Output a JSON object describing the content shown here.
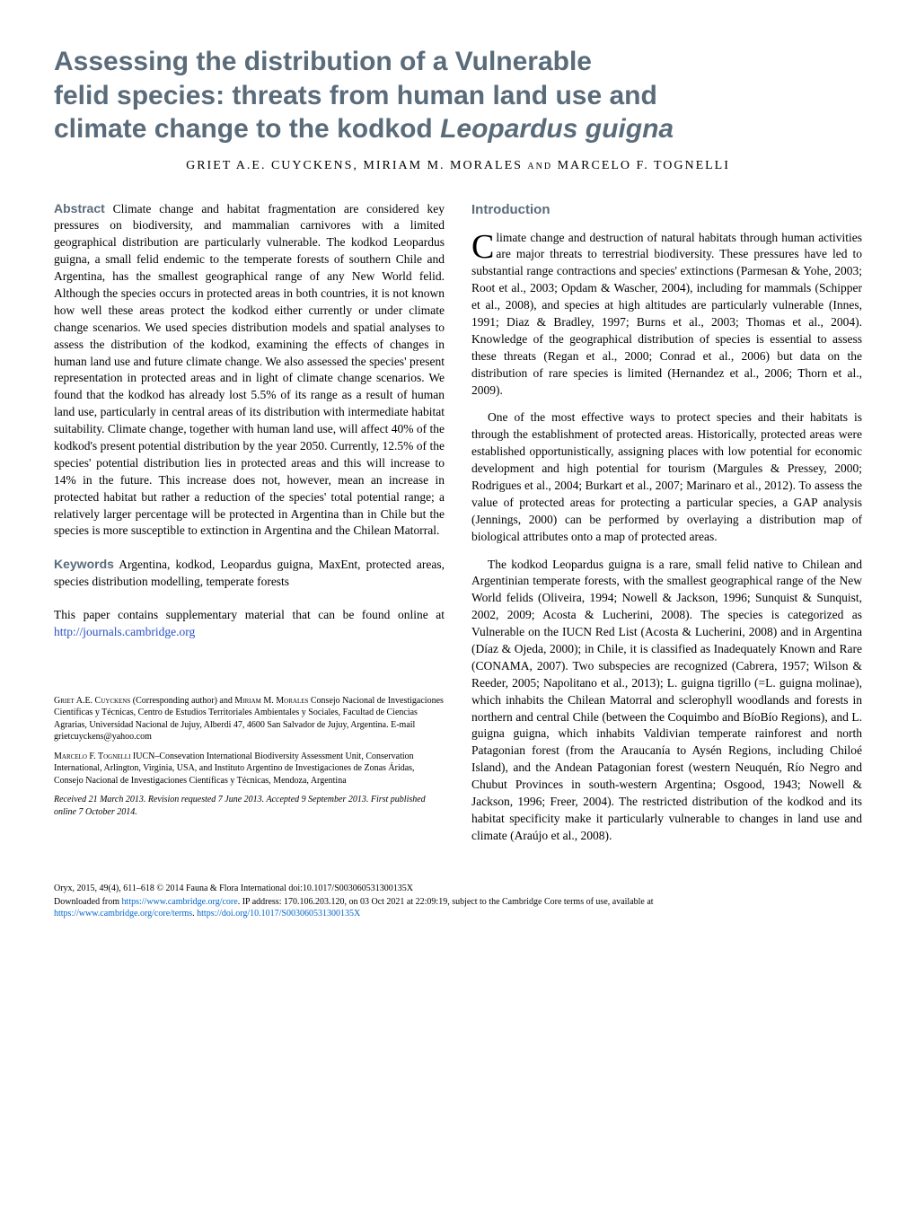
{
  "title": {
    "line1": "Assessing the distribution of a Vulnerable",
    "line2": "felid species: threats from human land use and",
    "line3_pre": "climate change to the kodkod ",
    "line3_italic": "Leopardus guigna"
  },
  "authors": "GRIET A.E. CUYCKENS, MIRIAM M. MORALES and MARCELO F. TOGNELLI",
  "abstract": {
    "label": "Abstract",
    "text": " Climate change and habitat fragmentation are considered key pressures on biodiversity, and mammalian carnivores with a limited geographical distribution are particularly vulnerable. The kodkod Leopardus guigna, a small felid endemic to the temperate forests of southern Chile and Argentina, has the smallest geographical range of any New World felid. Although the species occurs in protected areas in both countries, it is not known how well these areas protect the kodkod either currently or under climate change scenarios. We used species distribution models and spatial analyses to assess the distribution of the kodkod, examining the effects of changes in human land use and future climate change. We also assessed the species' present representation in protected areas and in light of climate change scenarios. We found that the kodkod has already lost 5.5% of its range as a result of human land use, particularly in central areas of its distribution with intermediate habitat suitability. Climate change, together with human land use, will affect 40% of the kodkod's present potential distribution by the year 2050. Currently, 12.5% of the species' potential distribution lies in protected areas and this will increase to 14% in the future. This increase does not, however, mean an increase in protected habitat but rather a reduction of the species' total potential range; a relatively larger percentage will be protected in Argentina than in Chile but the species is more susceptible to extinction in Argentina and the Chilean Matorral."
  },
  "keywords": {
    "label": "Keywords",
    "text": " Argentina, kodkod, Leopardus guigna, MaxEnt, protected areas, species distribution modelling, temperate forests"
  },
  "supplementary": {
    "text_pre": "This paper contains supplementary material that can be found online at ",
    "link": "http://journals.cambridge.org"
  },
  "affiliations": {
    "a1_name": "Griet A.E. Cuyckens",
    "a1_role": " (Corresponding author) and ",
    "a1_name2": "Miriam M. Morales",
    "a1_text": " Consejo Nacional de Investigaciones Científicas y Técnicas, Centro de Estudios Territoriales Ambientales y Sociales, Facultad de Ciencias Agrarias, Universidad Nacional de Jujuy, Alberdi 47, 4600 San Salvador de Jujuy, Argentina. E-mail grietcuyckens@yahoo.com",
    "a2_name": "Marcelo F. Tognelli",
    "a2_text": " IUCN–Consevation International Biodiversity Assessment Unit, Conservation International, Arlington, Virginia, USA, and Instituto Argentino de Investigaciones de Zonas Áridas, Consejo Nacional de Investigaciones Científicas y Técnicas, Mendoza, Argentina",
    "received": "Received 21 March 2013. Revision requested 7 June 2013. Accepted 9 September 2013. First published online 7 October 2014."
  },
  "intro": {
    "heading": "Introduction",
    "p1_dropcap": "C",
    "p1": "limate change and destruction of natural habitats through human activities are major threats to terrestrial biodiversity. These pressures have led to substantial range contractions and species' extinctions (Parmesan & Yohe, 2003; Root et al., 2003; Opdam & Wascher, 2004), including for mammals (Schipper et al., 2008), and species at high altitudes are particularly vulnerable (Innes, 1991; Diaz & Bradley, 1997; Burns et al., 2003; Thomas et al., 2004). Knowledge of the geographical distribution of species is essential to assess these threats (Regan et al., 2000; Conrad et al., 2006) but data on the distribution of rare species is limited (Hernandez et al., 2006; Thorn et al., 2009).",
    "p2": "One of the most effective ways to protect species and their habitats is through the establishment of protected areas. Historically, protected areas were established opportunistically, assigning places with low potential for economic development and high potential for tourism (Margules & Pressey, 2000; Rodrigues et al., 2004; Burkart et al., 2007; Marinaro et al., 2012). To assess the value of protected areas for protecting a particular species, a GAP analysis (Jennings, 2000) can be performed by overlaying a distribution map of biological attributes onto a map of protected areas.",
    "p3": "The kodkod Leopardus guigna is a rare, small felid native to Chilean and Argentinian temperate forests, with the smallest geographical range of the New World felids (Oliveira, 1994; Nowell & Jackson, 1996; Sunquist & Sunquist, 2002, 2009; Acosta & Lucherini, 2008). The species is categorized as Vulnerable on the IUCN Red List (Acosta & Lucherini, 2008) and in Argentina (Díaz & Ojeda, 2000); in Chile, it is classified as Inadequately Known and Rare (CONAMA, 2007). Two subspecies are recognized (Cabrera, 1957; Wilson & Reeder, 2005; Napolitano et al., 2013); L. guigna tigrillo (=L. guigna molinae), which inhabits the Chilean Matorral and sclerophyll woodlands and forests in northern and central Chile (between the Coquimbo and BíoBío Regions), and L. guigna guigna, which inhabits Valdivian temperate rainforest and north Patagonian forest (from the Araucanía to Aysén Regions, including Chiloé Island), and the Andean Patagonian forest (western Neuquén, Río Negro and Chubut Provinces in south-western Argentina; Osgood, 1943; Nowell & Jackson, 1996; Freer, 2004). The restricted distribution of the kodkod and its habitat specificity make it particularly vulnerable to changes in land use and climate (Araújo et al., 2008)."
  },
  "footer": {
    "line1": "Oryx, 2015, 49(4), 611–618 © 2014 Fauna & Flora International   doi:10.1017/S003060531300135X",
    "line2_pre": "Downloaded from ",
    "line2_link1": "https://www.cambridge.org/core",
    "line2_mid": ". IP address: 170.106.203.120, on 03 Oct 2021 at 22:09:19, subject to the Cambridge Core terms of use, available at",
    "line3_link1": "https://www.cambridge.org/core/terms",
    "line3_mid": ". ",
    "line3_link2": "https://doi.org/10.1017/S003060531300135X"
  }
}
